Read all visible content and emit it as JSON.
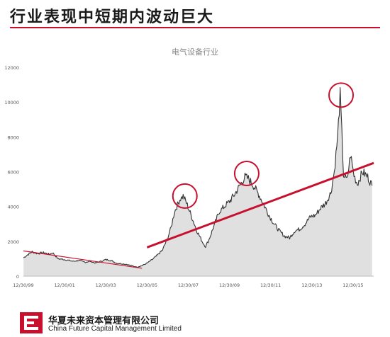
{
  "slide": {
    "title": "行业表现中短期内波动巨大",
    "accent_color": "#c8102e"
  },
  "footer": {
    "company_cn": "华夏未来资本管理有限公司",
    "company_en": "China Future Capital Management Limited",
    "logo_icon": "company-logo-icon"
  },
  "chart_data": {
    "type": "area",
    "title": "电气设备行业",
    "xlabel": "",
    "ylabel": "",
    "ylim": [
      0,
      12000
    ],
    "yticks": [
      0,
      2000,
      4000,
      6000,
      8000,
      10000,
      12000
    ],
    "ytick_labels": [
      "0",
      "2000",
      "4000",
      "6000",
      "8000",
      "10000",
      "12000"
    ],
    "xlim": [
      "1999-12-30",
      "2016-12-30"
    ],
    "xtick_labels": [
      "12/30/99",
      "12/30/01",
      "12/30/03",
      "12/30/05",
      "12/30/07",
      "12/30/09",
      "12/30/11",
      "12/30/13",
      "12/30/15"
    ],
    "xtick_dates": [
      "1999-12-30",
      "2001-12-30",
      "2003-12-30",
      "2005-12-30",
      "2007-12-30",
      "2009-12-30",
      "2011-12-30",
      "2013-12-30",
      "2015-12-30"
    ],
    "grid": false,
    "series": [
      {
        "fill_color": "#e0e0e0",
        "line_color": "#333333",
        "points": [
          [
            "2000-01-01",
            1050
          ],
          [
            "2000-03-01",
            1200
          ],
          [
            "2000-06-01",
            1400
          ],
          [
            "2000-09-01",
            1300
          ],
          [
            "2001-01-01",
            1350
          ],
          [
            "2001-04-01",
            1250
          ],
          [
            "2001-06-01",
            1350
          ],
          [
            "2001-09-01",
            1000
          ],
          [
            "2002-01-01",
            950
          ],
          [
            "2002-06-01",
            850
          ],
          [
            "2002-09-01",
            900
          ],
          [
            "2003-01-01",
            800
          ],
          [
            "2003-04-01",
            850
          ],
          [
            "2003-07-01",
            750
          ],
          [
            "2003-10-01",
            850
          ],
          [
            "2004-01-01",
            950
          ],
          [
            "2004-04-01",
            900
          ],
          [
            "2004-07-01",
            750
          ],
          [
            "2005-01-01",
            680
          ],
          [
            "2005-04-01",
            600
          ],
          [
            "2005-07-01",
            520
          ],
          [
            "2005-10-01",
            600
          ],
          [
            "2006-01-01",
            750
          ],
          [
            "2006-04-01",
            950
          ],
          [
            "2006-07-01",
            1200
          ],
          [
            "2006-10-01",
            1500
          ],
          [
            "2007-01-01",
            2200
          ],
          [
            "2007-03-01",
            2800
          ],
          [
            "2007-05-01",
            3700
          ],
          [
            "2007-08-01",
            4400
          ],
          [
            "2007-10-01",
            4600
          ],
          [
            "2007-12-01",
            4200
          ],
          [
            "2008-03-01",
            3400
          ],
          [
            "2008-06-01",
            2600
          ],
          [
            "2008-09-01",
            2000
          ],
          [
            "2008-11-01",
            1700
          ],
          [
            "2009-01-01",
            2100
          ],
          [
            "2009-04-01",
            2900
          ],
          [
            "2009-07-01",
            3700
          ],
          [
            "2009-10-01",
            4000
          ],
          [
            "2010-01-01",
            4300
          ],
          [
            "2010-04-01",
            4700
          ],
          [
            "2010-07-01",
            5200
          ],
          [
            "2010-10-01",
            5700
          ],
          [
            "2010-12-01",
            5600
          ],
          [
            "2011-03-01",
            5200
          ],
          [
            "2011-06-01",
            4700
          ],
          [
            "2011-09-01",
            4100
          ],
          [
            "2011-12-01",
            3500
          ],
          [
            "2012-03-01",
            3000
          ],
          [
            "2012-06-01",
            2600
          ],
          [
            "2012-09-01",
            2300
          ],
          [
            "2012-12-01",
            2200
          ],
          [
            "2013-03-01",
            2600
          ],
          [
            "2013-06-01",
            2700
          ],
          [
            "2013-09-01",
            3000
          ],
          [
            "2013-12-01",
            3400
          ],
          [
            "2014-03-01",
            3500
          ],
          [
            "2014-06-01",
            3900
          ],
          [
            "2014-09-01",
            4200
          ],
          [
            "2014-12-01",
            4800
          ],
          [
            "2015-02-01",
            6000
          ],
          [
            "2015-04-01",
            8000
          ],
          [
            "2015-05-15",
            10400
          ],
          [
            "2015-06-15",
            8200
          ],
          [
            "2015-07-15",
            5800
          ],
          [
            "2015-09-15",
            5500
          ],
          [
            "2015-11-15",
            7000
          ],
          [
            "2016-01-15",
            5800
          ],
          [
            "2016-03-15",
            5300
          ],
          [
            "2016-06-15",
            6000
          ],
          [
            "2016-09-15",
            5700
          ],
          [
            "2016-12-01",
            5200
          ]
        ]
      }
    ],
    "trendlines": [
      {
        "color": "#c8102e",
        "from": [
          "1999-12-30",
          1450
        ],
        "to": [
          "2005-10-01",
          450
        ]
      },
      {
        "color": "#c8102e",
        "from": [
          "2005-12-30",
          1650
        ],
        "to": [
          "2016-12-30",
          6500
        ]
      }
    ],
    "highlight_circles": [
      {
        "color": "#c8102e",
        "center": [
          "2007-11-01",
          4600
        ]
      },
      {
        "color": "#c8102e",
        "center": [
          "2010-11-01",
          5900
        ]
      },
      {
        "color": "#c8102e",
        "center": [
          "2015-06-01",
          10400
        ]
      }
    ]
  }
}
